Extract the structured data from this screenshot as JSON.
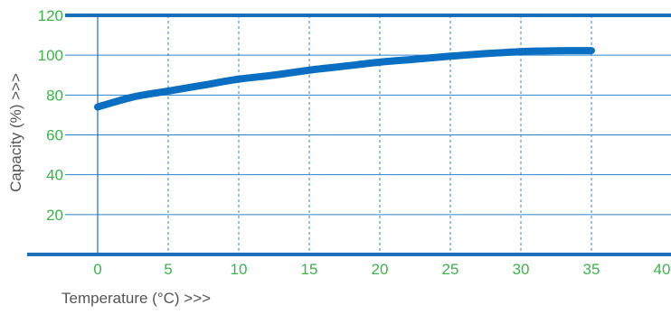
{
  "chart_data": {
    "type": "line",
    "title": "",
    "xlabel": "Temperature (°C)  >>>",
    "ylabel": "Capacity (%) >>>",
    "xlim": [
      -2,
      40
    ],
    "ylim": [
      0,
      120
    ],
    "x_ticks": [
      0,
      5,
      10,
      15,
      20,
      25,
      30,
      35,
      40
    ],
    "y_ticks": [
      20,
      40,
      60,
      80,
      100,
      120
    ],
    "grid": true,
    "series": [
      {
        "x": [
          0,
          2.5,
          5,
          7.5,
          10,
          12.5,
          15,
          17.5,
          20,
          22.5,
          25,
          27.5,
          30,
          32.5,
          35
        ],
        "y": [
          74,
          79,
          82,
          85,
          88,
          90,
          92.5,
          94.5,
          96.5,
          98,
          99.5,
          100.8,
          101.8,
          102.2,
          102.3
        ]
      }
    ],
    "colors": {
      "line": "#0a6fc2",
      "axis": "#1a6fb8",
      "grid": "#2f83cc",
      "tick_label": "#3bb54a",
      "axis_label": "#555555"
    }
  }
}
